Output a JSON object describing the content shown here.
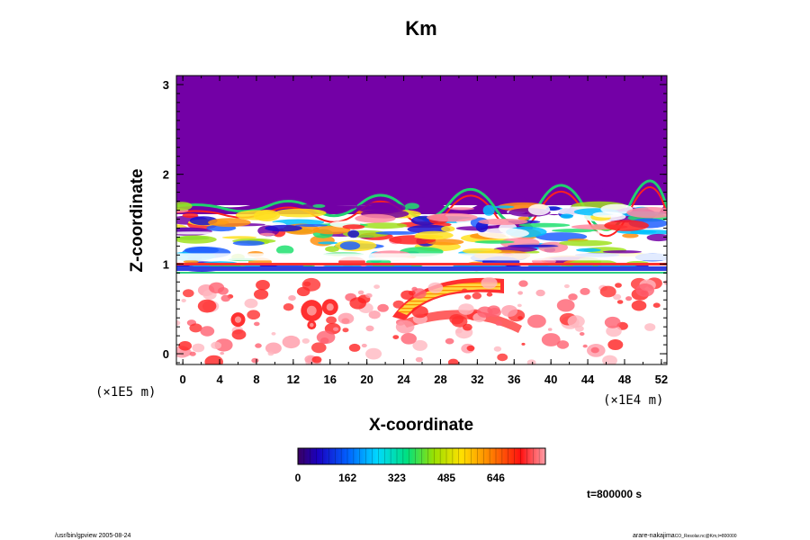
{
  "chart_data": {
    "type": "heatmap",
    "title": "Km",
    "xlabel": "X-coordinate",
    "ylabel": "Z-coordinate",
    "x_scale_label": "(×1E4 m)",
    "y_scale_label": "(×1E5 m)",
    "xlim": [
      -0.7,
      52.6
    ],
    "ylim": [
      -0.12,
      3.1
    ],
    "x_ticks": [
      0,
      4,
      8,
      12,
      16,
      20,
      24,
      28,
      32,
      36,
      40,
      44,
      48,
      52
    ],
    "x_tick_labels": [
      "0",
      "4",
      "8",
      "12",
      "16",
      "20",
      "24",
      "28",
      "32",
      "36",
      "40",
      "44",
      "48",
      "52"
    ],
    "y_ticks": [
      0,
      1,
      2,
      3
    ],
    "y_tick_labels": [
      "0",
      "1",
      "2",
      "3"
    ],
    "colorbar": {
      "min": 0,
      "max": 808,
      "tick_values": [
        0,
        162,
        323,
        485,
        646
      ],
      "tick_labels": [
        "0",
        "162",
        "323",
        "485",
        "646"
      ]
    },
    "regions": [
      {
        "desc": "upper uniform layer",
        "z_range": [
          1.68,
          3.1
        ],
        "value": 0
      },
      {
        "desc": "turbulent band",
        "z_range": [
          0.92,
          1.72
        ],
        "value_range": [
          0,
          808
        ]
      },
      {
        "desc": "thin layer",
        "z_range": [
          0.85,
          0.95
        ],
        "value_range": [
          0,
          646
        ]
      },
      {
        "desc": "lower layer with eddies",
        "z_range": [
          -0.12,
          0.85
        ],
        "value_range": [
          323,
          808
        ]
      }
    ],
    "time_label": "t=800000 s"
  },
  "footer": {
    "left": "/usr/bin/gpview 2005-08-24",
    "right_main": "arare-nakajima",
    "right_sub": "CO_Resolar.nc@Km,t=800000"
  }
}
